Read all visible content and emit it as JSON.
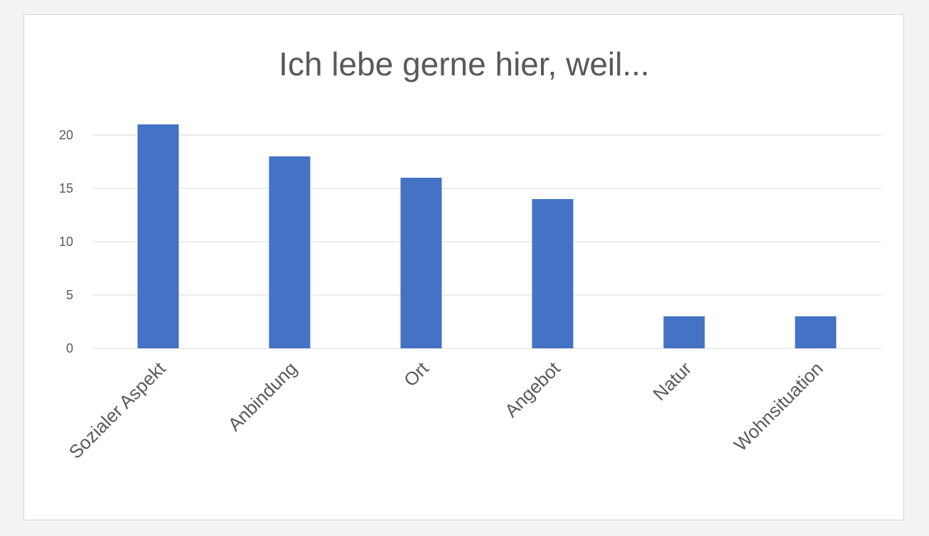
{
  "chart_data": {
    "type": "bar",
    "title": "Ich lebe gerne hier, weil...",
    "categories": [
      "Sozialer Aspekt",
      "Anbindung",
      "Ort",
      "Angebot",
      "Natur",
      "Wohnsituation"
    ],
    "values": [
      21,
      18,
      16,
      14,
      3,
      3
    ],
    "xlabel": "",
    "ylabel": "",
    "ylim": [
      0,
      20
    ],
    "yticks": [
      0,
      5,
      10,
      15,
      20
    ],
    "grid": true,
    "legend": "none",
    "bar_color": "#4472c4",
    "grid_color": "#d9d9d9"
  }
}
